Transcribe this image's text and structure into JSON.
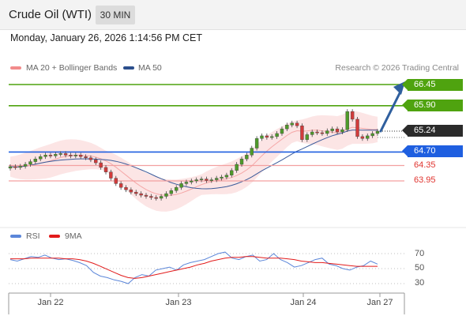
{
  "header": {
    "title": "Crude Oil (WTI)",
    "timeframe": "30 MIN"
  },
  "datetime": "Monday, January 26, 2026 1:14:56 PM CET",
  "legend": {
    "bollinger": {
      "label": "MA 20 + Bollinger Bands",
      "color": "#f28b8b"
    },
    "ma50": {
      "label": "MA 50",
      "color": "#2c4f8c"
    }
  },
  "credit": "Research © 2026 Trading Central",
  "levels": [
    {
      "value": "66.45",
      "kind": "resistance",
      "color": "#4fa30f"
    },
    {
      "value": "65.90",
      "kind": "resistance",
      "color": "#4fa30f"
    },
    {
      "value": "65.24",
      "kind": "last-price",
      "color": "#2b2b2b"
    },
    {
      "value": "64.70",
      "kind": "pivot",
      "color": "#1f5fe0"
    },
    {
      "value": "64.35",
      "kind": "support",
      "color": "#e0342f"
    },
    {
      "value": "63.95",
      "kind": "support",
      "color": "#e0342f"
    }
  ],
  "rsi_legend": {
    "rsi": {
      "label": "RSI",
      "color": "#5b86d9"
    },
    "ma9": {
      "label": "9MA",
      "color": "#e21b1b"
    }
  },
  "rsi_ticks": [
    "70",
    "50",
    "30"
  ],
  "x_axis": [
    "Jan 22",
    "Jan 23",
    "Jan 24",
    "Jan 27"
  ],
  "chart_data": [
    {
      "type": "candlestick",
      "y_axis_scale": "price",
      "levels": [
        66.45,
        65.9,
        65.24,
        64.7,
        64.35,
        63.95
      ],
      "last_price": 65.24,
      "x_ticks": [
        "Jan 22",
        "Jan 23",
        "Jan 24",
        "Jan 27"
      ],
      "overlays": [
        "MA 20 + Bollinger Bands",
        "MA 50"
      ],
      "close_series": [
        64.32,
        64.3,
        64.33,
        64.38,
        64.45,
        64.52,
        64.58,
        64.62,
        64.6,
        64.64,
        64.66,
        64.62,
        64.6,
        64.62,
        64.58,
        64.55,
        64.5,
        64.42,
        64.3,
        64.18,
        64.02,
        63.88,
        63.78,
        63.72,
        63.66,
        63.62,
        63.58,
        63.55,
        63.52,
        63.5,
        63.55,
        63.62,
        63.7,
        63.78,
        63.88,
        63.92,
        63.95,
        63.98,
        64.0,
        63.96,
        63.98,
        64.02,
        64.05,
        64.1,
        64.22,
        64.38,
        64.52,
        64.62,
        64.8,
        65.05,
        65.12,
        65.08,
        65.1,
        65.18,
        65.3,
        65.4,
        65.45,
        65.38,
        65.02,
        65.15,
        65.22,
        65.2,
        65.18,
        65.25,
        65.3,
        65.22,
        65.28,
        65.75,
        65.55,
        65.1,
        65.05,
        65.12,
        65.18,
        65.24
      ]
    },
    {
      "type": "line",
      "name": "RSI",
      "ylim": [
        30,
        70
      ],
      "y_ticks": [
        70,
        50,
        30
      ],
      "series": [
        {
          "name": "RSI",
          "values": [
            62,
            60,
            63,
            66,
            65,
            68,
            64,
            62,
            63,
            61,
            58,
            54,
            45,
            40,
            38,
            35,
            33,
            30,
            38,
            42,
            40,
            48,
            50,
            52,
            48,
            55,
            58,
            60,
            62,
            66,
            70,
            72,
            64,
            62,
            66,
            68,
            60,
            62,
            70,
            62,
            58,
            52,
            54,
            58,
            62,
            64,
            56,
            54,
            50,
            48,
            52,
            54,
            60,
            56
          ]
        },
        {
          "name": "9MA",
          "values": [
            63,
            63,
            63,
            64,
            64,
            64,
            64,
            64,
            63,
            63,
            62,
            60,
            57,
            53,
            49,
            45,
            41,
            38,
            37,
            38,
            40,
            42,
            44,
            46,
            48,
            50,
            52,
            55,
            57,
            60,
            62,
            64,
            65,
            65,
            66,
            66,
            65,
            64,
            64,
            64,
            63,
            62,
            60,
            59,
            58,
            58,
            57,
            56,
            55,
            54,
            53,
            53,
            53,
            53
          ]
        }
      ]
    }
  ]
}
